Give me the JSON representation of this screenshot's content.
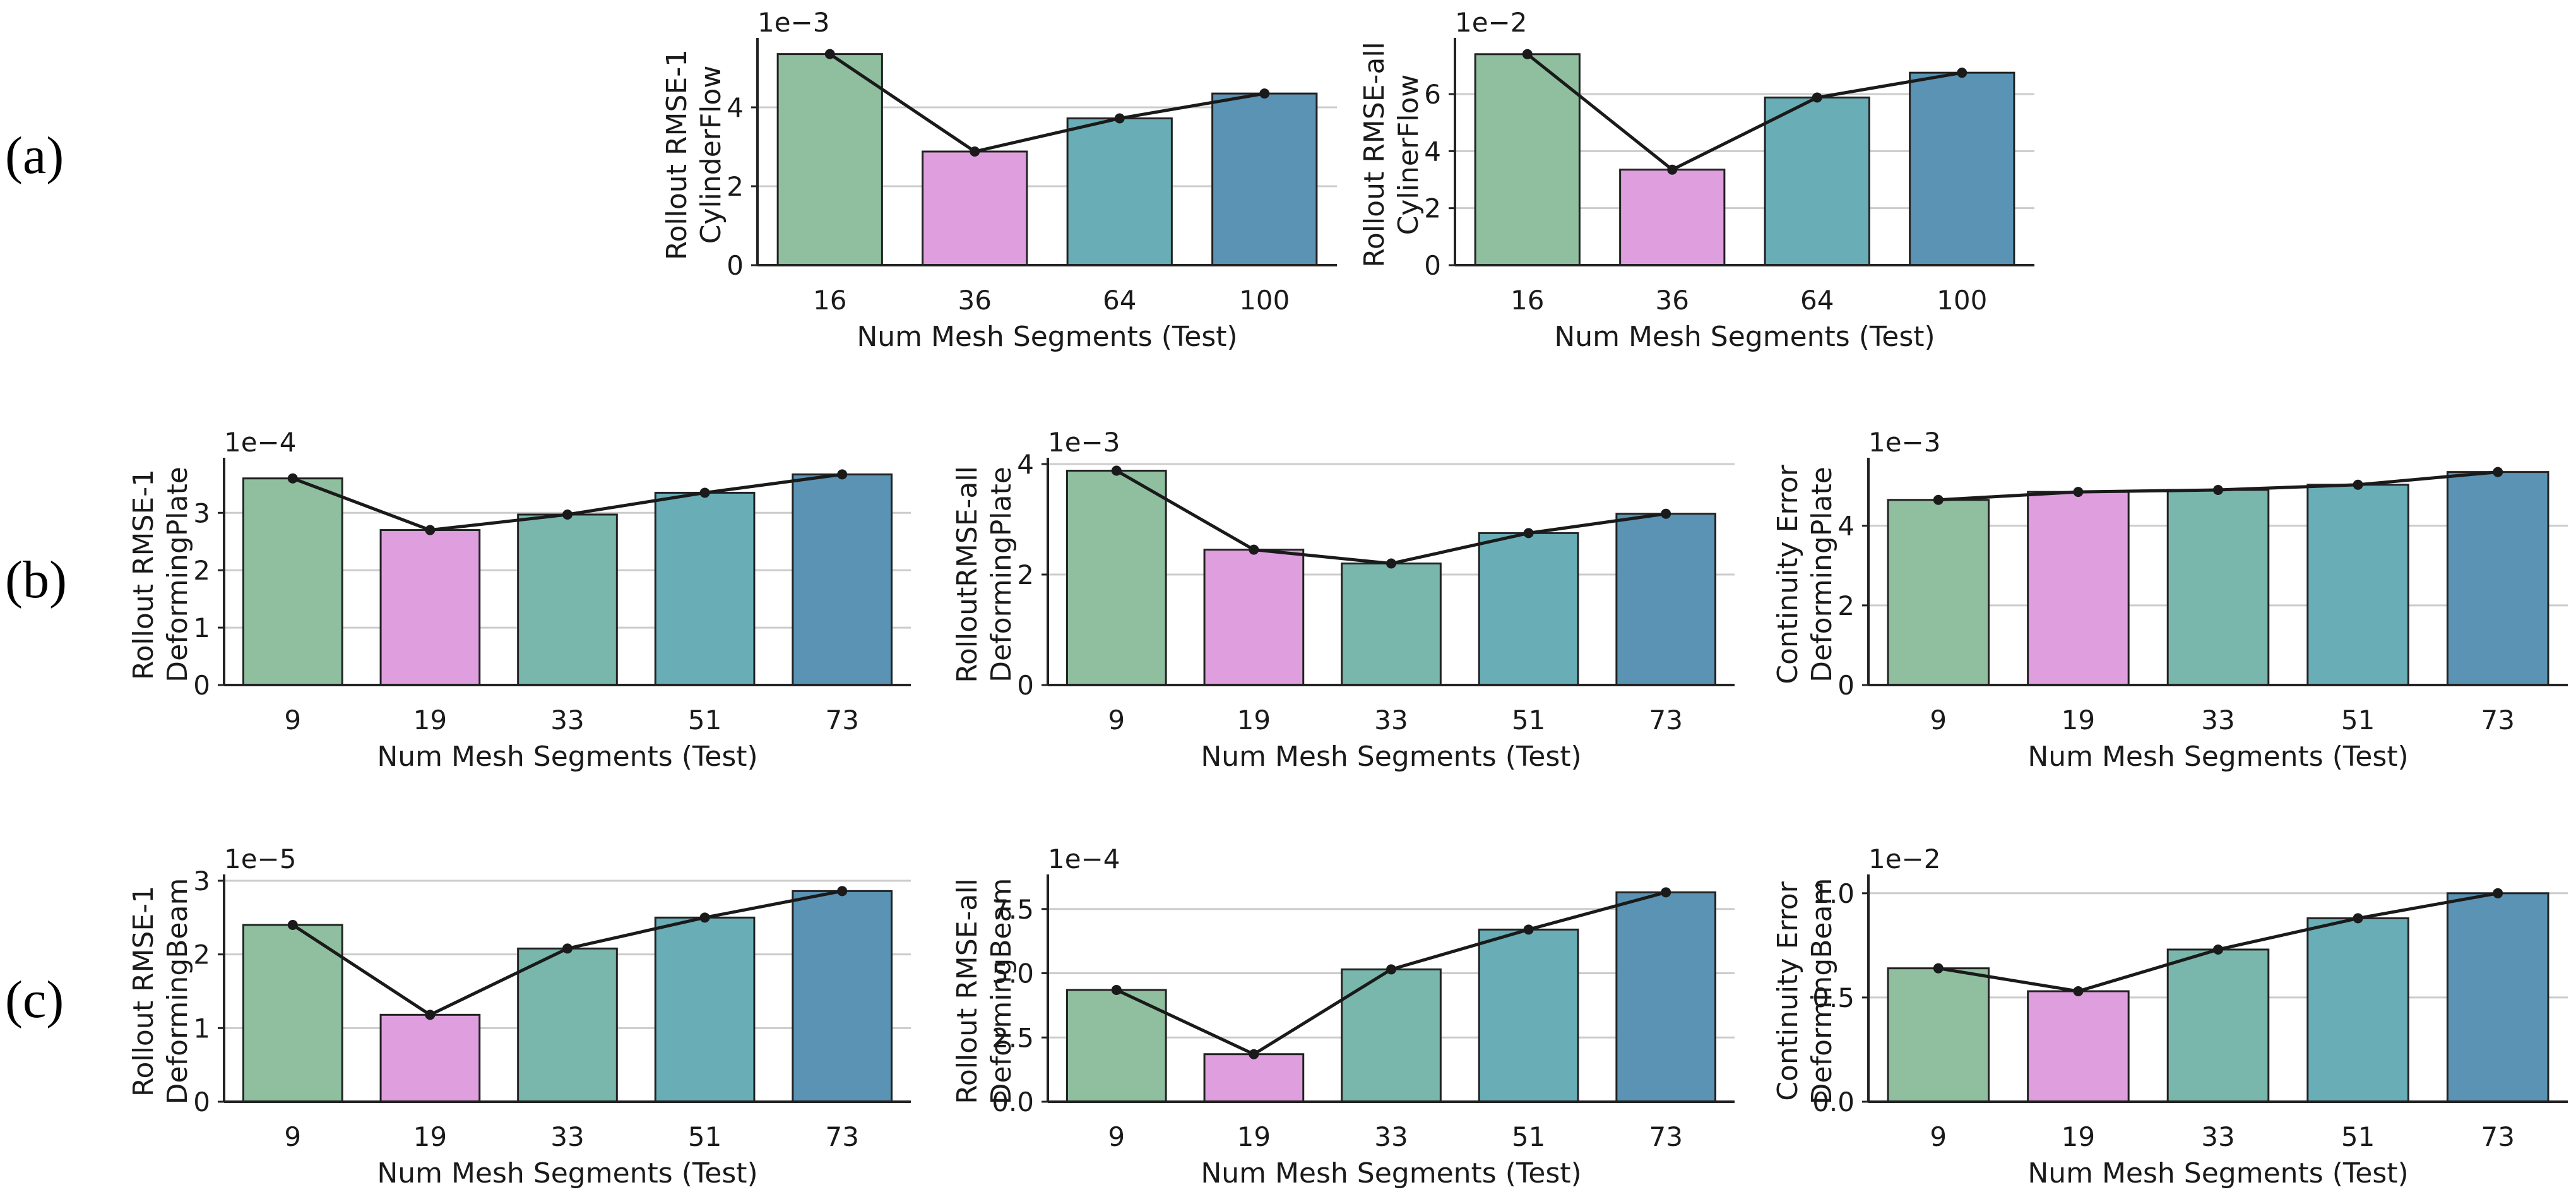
{
  "colors": {
    "green": "#8fbf9f",
    "pink": "#df9fde",
    "teal1": "#79b7ac",
    "teal2": "#69aeb6",
    "blue": "#5a93b3",
    "grid": "#cccccc",
    "axis": "#222222",
    "line": "#1a1a1a"
  },
  "row_labels": {
    "a": "(a)",
    "b": "(b)",
    "c": "(c)"
  },
  "chart_data": [
    {
      "type": "bar",
      "id": "a1",
      "xlabel": "Num Mesh Segments (Test)",
      "ylabel": [
        "Rollout RMSE-1",
        "CylinderFlow"
      ],
      "multiplier": "1e−3",
      "categories": [
        "16",
        "36",
        "64",
        "100"
      ],
      "values": [
        5.35,
        2.88,
        3.72,
        4.35
      ],
      "bar_colors": [
        "green",
        "pink",
        "teal2",
        "blue"
      ],
      "ylim": [
        0,
        5.6
      ],
      "yticks": [
        0,
        2,
        4
      ],
      "ytick_labels": [
        "0",
        "2",
        "4"
      ]
    },
    {
      "type": "bar",
      "id": "a2",
      "xlabel": "Num Mesh Segments (Test)",
      "ylabel": [
        "Rollout RMSE-all",
        "CylinerFlow"
      ],
      "multiplier": "1e−2",
      "categories": [
        "16",
        "36",
        "64",
        "100"
      ],
      "values": [
        7.4,
        3.35,
        5.88,
        6.75
      ],
      "bar_colors": [
        "green",
        "pink",
        "teal2",
        "blue"
      ],
      "ylim": [
        0,
        7.75
      ],
      "yticks": [
        0,
        2,
        4,
        6
      ],
      "ytick_labels": [
        "0",
        "2",
        "4",
        "6"
      ]
    },
    {
      "type": "bar",
      "id": "b1",
      "xlabel": "Num Mesh Segments (Test)",
      "ylabel": [
        "Rollout RMSE-1",
        "DeformingPlate"
      ],
      "multiplier": "1e−4",
      "categories": [
        "9",
        "19",
        "33",
        "51",
        "73"
      ],
      "values": [
        3.6,
        2.7,
        2.97,
        3.35,
        3.67
      ],
      "bar_colors": [
        "green",
        "pink",
        "teal1",
        "teal2",
        "blue"
      ],
      "ylim": [
        0,
        3.85
      ],
      "yticks": [
        0,
        1,
        2,
        3
      ],
      "ytick_labels": [
        "0",
        "1",
        "2",
        "3"
      ]
    },
    {
      "type": "bar",
      "id": "b2",
      "xlabel": "Num Mesh Segments (Test)",
      "ylabel": [
        "RolloutRMSE-all",
        "DeformingPlate"
      ],
      "multiplier": "1e−3",
      "categories": [
        "9",
        "19",
        "33",
        "51",
        "73"
      ],
      "values": [
        3.88,
        2.45,
        2.2,
        2.75,
        3.1
      ],
      "bar_colors": [
        "green",
        "pink",
        "teal1",
        "teal2",
        "blue"
      ],
      "ylim": [
        0,
        4.0
      ],
      "yticks": [
        0,
        2,
        4
      ],
      "ytick_labels": [
        "0",
        "2",
        "4"
      ]
    },
    {
      "type": "bar",
      "id": "b3",
      "xlabel": "Num Mesh Segments (Test)",
      "ylabel": [
        "Continuity Error",
        "DeformingPlate"
      ],
      "multiplier": "1e−3",
      "categories": [
        "9",
        "19",
        "33",
        "51",
        "73"
      ],
      "values": [
        4.65,
        4.85,
        4.9,
        5.03,
        5.35
      ],
      "bar_colors": [
        "green",
        "pink",
        "teal1",
        "teal2",
        "blue"
      ],
      "ylim": [
        0,
        5.55
      ],
      "yticks": [
        0,
        2,
        4
      ],
      "ytick_labels": [
        "0",
        "2",
        "4"
      ]
    },
    {
      "type": "bar",
      "id": "c1",
      "xlabel": "Num Mesh Segments (Test)",
      "ylabel": [
        "Rollout RMSE-1",
        "DeformingBeam"
      ],
      "multiplier": "1e−5",
      "categories": [
        "9",
        "19",
        "33",
        "51",
        "73"
      ],
      "values": [
        2.4,
        1.18,
        2.08,
        2.5,
        2.86
      ],
      "bar_colors": [
        "green",
        "pink",
        "teal1",
        "teal2",
        "blue"
      ],
      "ylim": [
        0,
        3.0
      ],
      "yticks": [
        0,
        1,
        2,
        3
      ],
      "ytick_labels": [
        "0",
        "1",
        "2",
        "3"
      ]
    },
    {
      "type": "bar",
      "id": "c2",
      "xlabel": "Num Mesh Segments (Test)",
      "ylabel": [
        "Rollout RMSE-all",
        "DeformingBeam"
      ],
      "multiplier": "1e−4",
      "categories": [
        "9",
        "19",
        "33",
        "51",
        "73"
      ],
      "values": [
        4.35,
        1.85,
        5.15,
        6.7,
        8.15
      ],
      "bar_colors": [
        "green",
        "pink",
        "teal1",
        "teal2",
        "blue"
      ],
      "ylim": [
        0,
        8.6
      ],
      "yticks": [
        0,
        2.5,
        5,
        7.5
      ],
      "ytick_labels": [
        "0.0",
        "2.5",
        "5.0",
        "7.5"
      ]
    },
    {
      "type": "bar",
      "id": "c3",
      "xlabel": "Num Mesh Segments (Test)",
      "ylabel": [
        "Continuity Error",
        "DeformingBeam"
      ],
      "multiplier": "1e−2",
      "categories": [
        "9",
        "19",
        "33",
        "51",
        "73"
      ],
      "values": [
        0.64,
        0.53,
        0.73,
        0.88,
        1.0
      ],
      "bar_colors": [
        "green",
        "pink",
        "teal1",
        "teal2",
        "blue"
      ],
      "ylim": [
        0,
        1.06
      ],
      "yticks": [
        0,
        0.5,
        1.0
      ],
      "ytick_labels": [
        "0.0",
        "0.5",
        "1.0"
      ]
    }
  ]
}
